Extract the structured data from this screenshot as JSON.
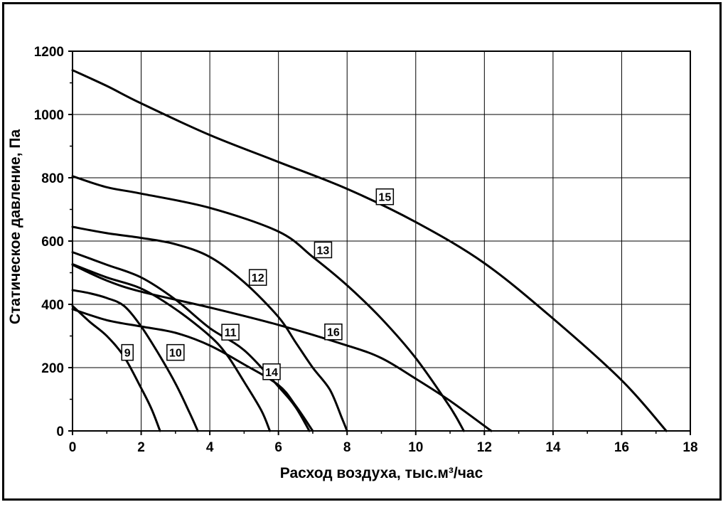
{
  "chart_data": {
    "type": "line",
    "xlabel": "Расход воздуха, тыс.м³/час",
    "ylabel": "Статическое давление, Па",
    "xlim": [
      0,
      18
    ],
    "ylim": [
      0,
      1200
    ],
    "xticks": [
      0,
      2,
      4,
      6,
      8,
      10,
      12,
      14,
      16,
      18
    ],
    "yticks": [
      0,
      200,
      400,
      600,
      800,
      1000,
      1200
    ],
    "grid": true,
    "legend": "none",
    "series": [
      {
        "name": "9",
        "label_at": [
          1.6,
          248
        ],
        "points": [
          [
            0,
            395
          ],
          [
            0.5,
            345
          ],
          [
            1.0,
            300
          ],
          [
            1.5,
            235
          ],
          [
            2.0,
            135
          ],
          [
            2.3,
            70
          ],
          [
            2.55,
            0
          ]
        ]
      },
      {
        "name": "10",
        "label_at": [
          3.0,
          248
        ],
        "points": [
          [
            0,
            445
          ],
          [
            0.5,
            435
          ],
          [
            1.0,
            420
          ],
          [
            1.5,
            395
          ],
          [
            2.0,
            330
          ],
          [
            2.5,
            245
          ],
          [
            3.0,
            150
          ],
          [
            3.4,
            60
          ],
          [
            3.65,
            0
          ]
        ]
      },
      {
        "name": "11",
        "label_at": [
          4.6,
          312
        ],
        "points": [
          [
            0,
            527
          ],
          [
            1.0,
            485
          ],
          [
            2.0,
            450
          ],
          [
            3.0,
            385
          ],
          [
            4.0,
            300
          ],
          [
            4.5,
            240
          ],
          [
            5.0,
            155
          ],
          [
            5.5,
            65
          ],
          [
            5.75,
            0
          ]
        ]
      },
      {
        "name": "12",
        "label_at": [
          5.4,
          485
        ],
        "points": [
          [
            0,
            565
          ],
          [
            1.0,
            525
          ],
          [
            2.0,
            485
          ],
          [
            3.0,
            415
          ],
          [
            4.0,
            325
          ],
          [
            5.0,
            255
          ],
          [
            6.0,
            140
          ],
          [
            6.5,
            75
          ],
          [
            6.9,
            0
          ]
        ]
      },
      {
        "name": "13",
        "label_at": [
          7.3,
          572
        ],
        "points": [
          [
            0,
            645
          ],
          [
            1.0,
            625
          ],
          [
            2.0,
            610
          ],
          [
            3.0,
            590
          ],
          [
            4.0,
            550
          ],
          [
            5.0,
            470
          ],
          [
            6.0,
            360
          ],
          [
            6.5,
            280
          ],
          [
            7.0,
            200
          ],
          [
            7.5,
            130
          ],
          [
            7.85,
            40
          ],
          [
            8.0,
            0
          ]
        ]
      },
      {
        "name": "14",
        "label_at": [
          5.8,
          187
        ],
        "points": [
          [
            0,
            385
          ],
          [
            1.0,
            350
          ],
          [
            2.0,
            330
          ],
          [
            3.0,
            310
          ],
          [
            4.0,
            270
          ],
          [
            5.0,
            210
          ],
          [
            6.0,
            145
          ],
          [
            6.5,
            80
          ],
          [
            7.0,
            0
          ]
        ]
      },
      {
        "name": "15",
        "label_at": [
          9.1,
          740
        ],
        "points": [
          [
            0,
            1140
          ],
          [
            1.0,
            1090
          ],
          [
            2.0,
            1035
          ],
          [
            4.0,
            935
          ],
          [
            6.0,
            850
          ],
          [
            8.0,
            765
          ],
          [
            10.0,
            660
          ],
          [
            12.0,
            530
          ],
          [
            14.0,
            355
          ],
          [
            16.0,
            160
          ],
          [
            17.3,
            0
          ]
        ]
      },
      {
        "name": "16",
        "label_at": [
          7.6,
          313
        ],
        "points": [
          [
            0,
            805
          ],
          [
            1.0,
            770
          ],
          [
            2.0,
            750
          ],
          [
            4.0,
            705
          ],
          [
            6.0,
            630
          ],
          [
            7.0,
            550
          ],
          [
            8.0,
            460
          ],
          [
            9.0,
            355
          ],
          [
            10.0,
            230
          ],
          [
            11.0,
            75
          ],
          [
            11.4,
            0
          ]
        ]
      },
      {
        "name": "",
        "label_at": null,
        "points": [
          [
            0,
            525
          ],
          [
            1.0,
            475
          ],
          [
            2.0,
            440
          ],
          [
            4.0,
            390
          ],
          [
            6.0,
            335
          ],
          [
            8.0,
            270
          ],
          [
            9.0,
            230
          ],
          [
            10.0,
            165
          ],
          [
            11.0,
            95
          ],
          [
            12.2,
            0
          ]
        ]
      }
    ]
  }
}
